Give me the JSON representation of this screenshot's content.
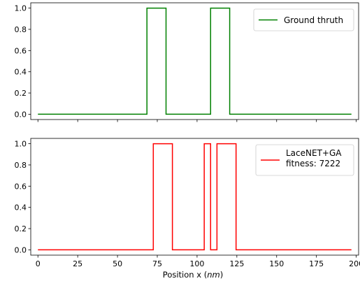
{
  "chart_data": [
    {
      "type": "line",
      "series": [
        {
          "name": "Ground thruth",
          "color": "#008000",
          "x": [
            0,
            68.5,
            68.5,
            80.5,
            80.5,
            108.5,
            108.5,
            120.5,
            120.5,
            197
          ],
          "y": [
            0,
            0,
            1,
            1,
            0,
            0,
            1,
            1,
            0,
            0
          ]
        }
      ],
      "xlim": [
        -4.5,
        201.5
      ],
      "ylim": [
        -0.05,
        1.05
      ],
      "xticks": [
        0,
        25,
        50,
        75,
        100,
        125,
        150,
        175,
        200
      ],
      "xtick_labels_visible": false,
      "yticks": [
        "0.0",
        "0.2",
        "0.4",
        "0.6",
        "0.8",
        "1.0"
      ],
      "legend": "top-right",
      "grid": false
    },
    {
      "type": "line",
      "series": [
        {
          "name": "LaceNET+GA",
          "legend_label": [
            "LaceNET+GA",
            "fitness: 7222"
          ],
          "color": "#ff0000",
          "x": [
            0,
            72.5,
            72.5,
            84.5,
            84.5,
            104.5,
            104.5,
            108.5,
            108.5,
            112.5,
            112.5,
            124.5,
            124.5,
            197
          ],
          "y": [
            0,
            0,
            1,
            1,
            0,
            0,
            1,
            1,
            0,
            0,
            1,
            1,
            0,
            0
          ]
        }
      ],
      "xlim": [
        -4.5,
        201.5
      ],
      "ylim": [
        -0.05,
        1.05
      ],
      "xticks": [
        "0",
        "25",
        "50",
        "75",
        "100",
        "125",
        "150",
        "175",
        "200"
      ],
      "yticks": [
        "0.0",
        "0.2",
        "0.4",
        "0.6",
        "0.8",
        "1.0"
      ],
      "xlabel_prefix": "Position x (",
      "xlabel_unit": "nm",
      "xlabel_suffix": ")",
      "legend": "top-right",
      "grid": false
    }
  ]
}
